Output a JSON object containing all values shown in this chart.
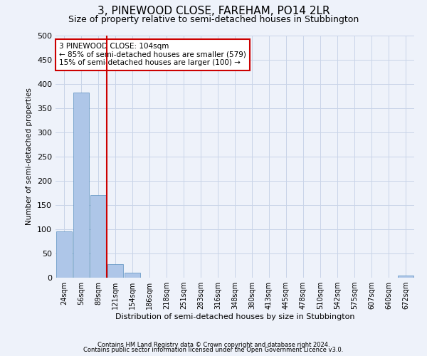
{
  "title": "3, PINEWOOD CLOSE, FAREHAM, PO14 2LR",
  "subtitle": "Size of property relative to semi-detached houses in Stubbington",
  "xlabel": "Distribution of semi-detached houses by size in Stubbington",
  "ylabel": "Number of semi-detached properties",
  "footer_line1": "Contains HM Land Registry data © Crown copyright and database right 2024.",
  "footer_line2": "Contains public sector information licensed under the Open Government Licence v3.0.",
  "annotation_title": "3 PINEWOOD CLOSE: 104sqm",
  "annotation_line1": "← 85% of semi-detached houses are smaller (579)",
  "annotation_line2": "15% of semi-detached houses are larger (100) →",
  "property_size": 104,
  "property_line_x": 2.5,
  "categories": [
    "24sqm",
    "56sqm",
    "89sqm",
    "121sqm",
    "154sqm",
    "186sqm",
    "218sqm",
    "251sqm",
    "283sqm",
    "316sqm",
    "348sqm",
    "380sqm",
    "413sqm",
    "445sqm",
    "478sqm",
    "510sqm",
    "542sqm",
    "575sqm",
    "607sqm",
    "640sqm",
    "672sqm"
  ],
  "values": [
    95,
    383,
    170,
    28,
    10,
    0,
    0,
    0,
    0,
    0,
    0,
    0,
    0,
    0,
    0,
    0,
    0,
    0,
    0,
    0,
    5
  ],
  "bar_color": "#aec6e8",
  "bar_edge_color": "#5a8fc0",
  "property_line_color": "#cc0000",
  "annotation_box_color": "#cc0000",
  "annotation_bg_color": "#ffffff",
  "grid_color": "#c8d4e8",
  "ylim": [
    0,
    500
  ],
  "yticks": [
    0,
    50,
    100,
    150,
    200,
    250,
    300,
    350,
    400,
    450,
    500
  ],
  "background_color": "#eef2fa",
  "title_fontsize": 11,
  "subtitle_fontsize": 9
}
